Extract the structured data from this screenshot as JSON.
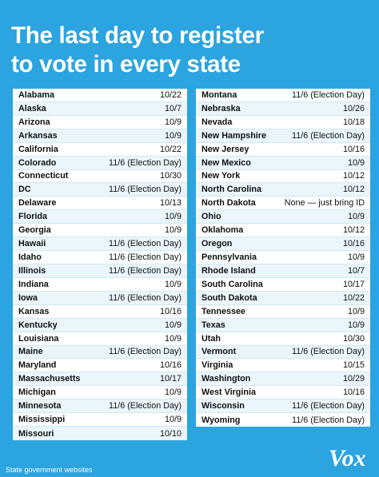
{
  "title": {
    "line1": "The last day to register",
    "line2": "to vote in every state"
  },
  "left_table": [
    {
      "state": "Alabama",
      "date": "10/22"
    },
    {
      "state": "Alaska",
      "date": "10/7"
    },
    {
      "state": "Arizona",
      "date": "10/9"
    },
    {
      "state": "Arkansas",
      "date": "10/9"
    },
    {
      "state": "California",
      "date": "10/22"
    },
    {
      "state": "Colorado",
      "date": "11/6 (Election Day)"
    },
    {
      "state": "Connecticut",
      "date": "10/30"
    },
    {
      "state": "DC",
      "date": "11/6 (Election Day)"
    },
    {
      "state": "Delaware",
      "date": "10/13"
    },
    {
      "state": "Florida",
      "date": "10/9"
    },
    {
      "state": "Georgia",
      "date": "10/9"
    },
    {
      "state": "Hawaii",
      "date": "11/6 (Election Day)"
    },
    {
      "state": "Idaho",
      "date": "11/6 (Election Day)"
    },
    {
      "state": "Illinois",
      "date": "11/6 (Election Day)"
    },
    {
      "state": "Indiana",
      "date": "10/9"
    },
    {
      "state": "Iowa",
      "date": "11/6 (Election Day)"
    },
    {
      "state": "Kansas",
      "date": "10/16"
    },
    {
      "state": "Kentucky",
      "date": "10/9"
    },
    {
      "state": "Louisiana",
      "date": "10/9"
    },
    {
      "state": "Maine",
      "date": "11/6 (Election Day)"
    },
    {
      "state": "Maryland",
      "date": "10/16"
    },
    {
      "state": "Massachusetts",
      "date": "10/17"
    },
    {
      "state": "Michigan",
      "date": "10/9"
    },
    {
      "state": "Minnesota",
      "date": "11/6 (Election Day)"
    },
    {
      "state": "Mississippi",
      "date": "10/9"
    },
    {
      "state": "Missouri",
      "date": "10/10"
    }
  ],
  "right_table": [
    {
      "state": "Montana",
      "date": "11/6 (Election Day)"
    },
    {
      "state": "Nebraska",
      "date": "10/26"
    },
    {
      "state": "Nevada",
      "date": "10/18"
    },
    {
      "state": "New Hampshire",
      "date": "11/6 (Election Day)"
    },
    {
      "state": "New Jersey",
      "date": "10/16"
    },
    {
      "state": "New Mexico",
      "date": "10/9"
    },
    {
      "state": "New York",
      "date": "10/12"
    },
    {
      "state": "North Carolina",
      "date": "10/12"
    },
    {
      "state": "North Dakota",
      "date": "None — just bring ID"
    },
    {
      "state": "Ohio",
      "date": "10/9"
    },
    {
      "state": "Oklahoma",
      "date": "10/12"
    },
    {
      "state": "Oregon",
      "date": "10/16"
    },
    {
      "state": "Pennsylvania",
      "date": "10/9"
    },
    {
      "state": "Rhode Island",
      "date": "10/7"
    },
    {
      "state": "South Carolina",
      "date": "10/17"
    },
    {
      "state": "South Dakota",
      "date": "10/22"
    },
    {
      "state": "Tennessee",
      "date": "10/9"
    },
    {
      "state": "Texas",
      "date": "10/9"
    },
    {
      "state": "Utah",
      "date": "10/30"
    },
    {
      "state": "Vermont",
      "date": "11/6 (Election Day)"
    },
    {
      "state": "Virginia",
      "date": "10/15"
    },
    {
      "state": "Washington",
      "date": "10/29"
    },
    {
      "state": "West Virginia",
      "date": "10/16"
    },
    {
      "state": "Wisconsin",
      "date": "11/6 (Election Day)"
    },
    {
      "state": "Wyoming",
      "date": "11/6 (Election Day)"
    }
  ],
  "source": "State government websites",
  "logo": "Vox",
  "colors": {
    "background": "#2ba4df",
    "row_alt": "#eaf5fc",
    "text": "#111111"
  }
}
